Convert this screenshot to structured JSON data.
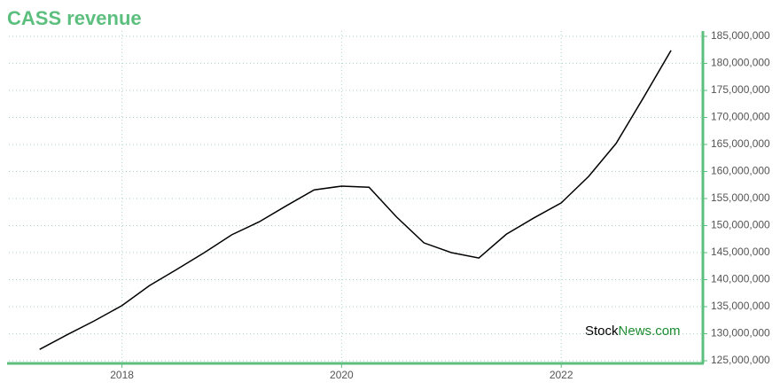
{
  "chart_data": {
    "type": "line",
    "title": "CASS revenue",
    "watermark": [
      "Stock",
      "News.com"
    ],
    "x": [
      2017.25,
      2017.5,
      2017.75,
      2018.0,
      2018.25,
      2018.5,
      2018.75,
      2019.0,
      2019.25,
      2019.5,
      2019.75,
      2020.0,
      2020.25,
      2020.5,
      2020.75,
      2021.0,
      2021.25,
      2021.5,
      2021.75,
      2022.0,
      2022.25,
      2022.5,
      2022.75,
      2023.0
    ],
    "series": [
      {
        "name": "CASS revenue",
        "color": "#000000",
        "values": [
          127100000,
          129800000,
          132400000,
          135200000,
          138900000,
          141900000,
          145000000,
          148300000,
          150700000,
          153700000,
          156600000,
          157300000,
          157100000,
          151600000,
          146800000,
          145000000,
          144000000,
          148400000,
          151400000,
          154200000,
          159100000,
          165200000,
          173700000,
          182400000
        ]
      }
    ],
    "xlim": [
      2016.97,
      2023.29
    ],
    "xticks": [
      2018,
      2020,
      2022
    ],
    "ylim": [
      125000000,
      185000000
    ],
    "yticks": [
      {
        "value": 125000000,
        "label": "125,000,000"
      },
      {
        "value": 130000000,
        "label": "130,000,000"
      },
      {
        "value": 135000000,
        "label": "135,000,000"
      },
      {
        "value": 140000000,
        "label": "140,000,000"
      },
      {
        "value": 145000000,
        "label": "145,000,000"
      },
      {
        "value": 150000000,
        "label": "150,000,000"
      },
      {
        "value": 155000000,
        "label": "155,000,000"
      },
      {
        "value": 160000000,
        "label": "160,000,000"
      },
      {
        "value": 165000000,
        "label": "165,000,000"
      },
      {
        "value": 170000000,
        "label": "170,000,000"
      },
      {
        "value": 175000000,
        "label": "175,000,000"
      },
      {
        "value": 180000000,
        "label": "180,000,000"
      },
      {
        "value": 185000000,
        "label": "185,000,000"
      }
    ],
    "grid": true,
    "axis_color": "#5cbf7e"
  }
}
